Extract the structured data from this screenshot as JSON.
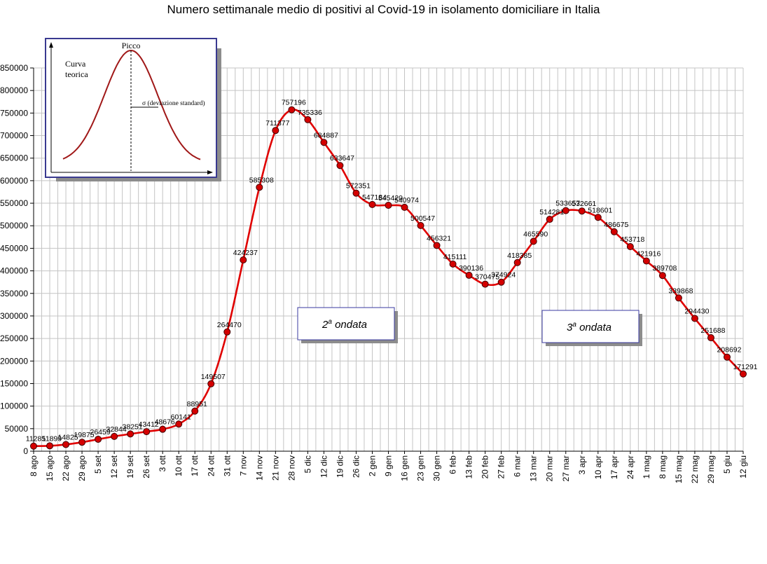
{
  "chart_data": {
    "type": "line",
    "title": "Numero settimanale medio di positivi al Covid-19  in isolamento domiciliare in Italia",
    "xlabel": "",
    "ylabel": "",
    "ylim": [
      0,
      850000
    ],
    "yticks": [
      0,
      50000,
      100000,
      150000,
      200000,
      250000,
      300000,
      350000,
      400000,
      450000,
      500000,
      550000,
      600000,
      650000,
      700000,
      750000,
      800000,
      850000
    ],
    "grid": true,
    "line_color": "#e00000",
    "marker_color": "#d40000",
    "categories": [
      "8 ago",
      "15 ago",
      "22 ago",
      "29 ago",
      "5 set",
      "12 set",
      "19 set",
      "26 set",
      "3 ott",
      "10 ott",
      "17 ott",
      "24 ott",
      "31 ott",
      "7 nov",
      "14 nov",
      "21 nov",
      "28 nov",
      "5 dic",
      "12 dic",
      "19 dic",
      "26 dic",
      "2 gen",
      "9 gen",
      "16 gen",
      "23 gen",
      "30 gen",
      "6 feb",
      "13 feb",
      "20 feb",
      "27 feb",
      "6 mar",
      "13 mar",
      "20 mar",
      "27 mar",
      "3 apr",
      "10 apr",
      "17 apr",
      "24 apr",
      "1 mag",
      "8 mag",
      "15 mag",
      "22 mag",
      "29 mag",
      "5 giu",
      "12 giu"
    ],
    "series": [
      {
        "values": [
          11285,
          11899,
          14825,
          19875,
          26459,
          32844,
          38251,
          43412,
          48676,
          60141,
          88951,
          149507,
          264470,
          424237,
          585308,
          711377,
          757196,
          735336,
          684887,
          633647,
          572351,
          547184,
          545420,
          540974,
          500547,
          456321,
          415111,
          390136,
          370475,
          374924,
          418385,
          465590,
          514281,
          533657,
          532661,
          518601,
          486675,
          453718,
          421916,
          389708,
          339868,
          294430,
          251688,
          208692,
          171291
        ]
      }
    ],
    "data_labels": [
      "11285",
      "11899",
      "14825",
      "19875",
      "26459",
      "32844",
      "38251",
      "43412",
      "48676",
      "60141",
      "88951",
      "149507",
      "264470",
      "424237",
      "585308",
      "711377",
      "757196",
      "735336",
      "684887",
      "633647",
      "572351",
      "547184",
      "545420",
      "540974",
      "500547",
      "456321",
      "415111",
      "390136",
      "370475",
      "374924",
      "418385",
      "465590",
      "514281",
      "533657",
      "532661",
      "518601",
      "486675",
      "453718",
      "421916",
      "389708",
      "339868",
      "294430",
      "251688",
      "208692",
      "171291"
    ],
    "annotations": [
      {
        "text": "2ª ondata"
      },
      {
        "text": "3ª ondata"
      }
    ],
    "inset": {
      "peak_label": "Picco",
      "curve_label_1": "Curva",
      "curve_label_2": "teorica",
      "sigma_label": "σ  (deviazione standard)"
    }
  }
}
